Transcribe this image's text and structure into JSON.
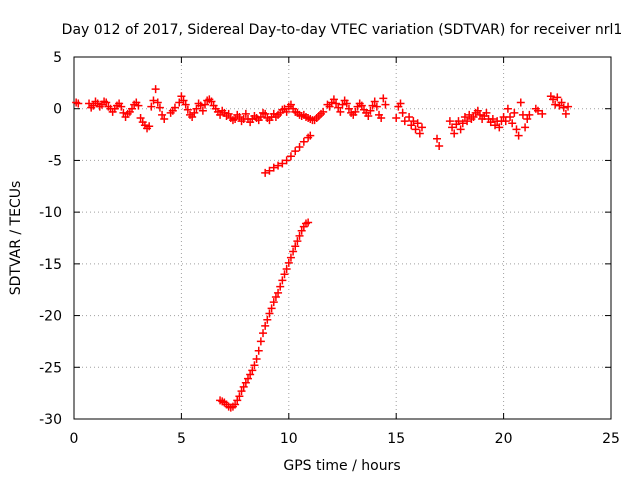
{
  "chart_data": {
    "type": "scatter",
    "title": "Day 012 of 2017, Sidereal Day-to-day VTEC variation (SDTVAR) for receiver nrl1",
    "xlabel": "GPS time / hours",
    "ylabel": "SDTVAR / TECUs",
    "xlim": [
      0,
      25
    ],
    "ylim": [
      -30,
      5
    ],
    "xticks": [
      0,
      5,
      10,
      15,
      20,
      25
    ],
    "yticks": [
      5,
      0,
      -5,
      -10,
      -15,
      -20,
      -25,
      -30
    ],
    "xtick_labels": [
      "0",
      "5",
      "10",
      "15",
      "20",
      "25"
    ],
    "ytick_labels": [
      "5",
      "0",
      "-5",
      "-10",
      "-15",
      "-20",
      "-25",
      "-30"
    ],
    "grid": true,
    "marker": "+",
    "color": "#ff0000",
    "series": [
      {
        "name": "SDTVAR",
        "points": [
          [
            0.1,
            0.6
          ],
          [
            0.2,
            0.5
          ],
          [
            0.7,
            0.5
          ],
          [
            0.8,
            0.1
          ],
          [
            0.9,
            0.3
          ],
          [
            1.0,
            0.7
          ],
          [
            1.1,
            0.5
          ],
          [
            1.2,
            0.2
          ],
          [
            1.3,
            0.4
          ],
          [
            1.4,
            0.7
          ],
          [
            1.5,
            0.6
          ],
          [
            1.6,
            0.2
          ],
          [
            1.7,
            0.0
          ],
          [
            1.8,
            -0.3
          ],
          [
            1.9,
            0.0
          ],
          [
            2.0,
            0.3
          ],
          [
            2.1,
            0.5
          ],
          [
            2.2,
            0.2
          ],
          [
            2.3,
            -0.4
          ],
          [
            2.4,
            -0.8
          ],
          [
            2.5,
            -0.5
          ],
          [
            2.6,
            -0.3
          ],
          [
            2.7,
            0.0
          ],
          [
            2.8,
            0.4
          ],
          [
            2.9,
            0.6
          ],
          [
            3.0,
            0.3
          ],
          [
            3.1,
            -0.9
          ],
          [
            3.2,
            -1.3
          ],
          [
            3.3,
            -1.6
          ],
          [
            3.4,
            -1.9
          ],
          [
            3.5,
            -1.7
          ],
          [
            3.6,
            0.2
          ],
          [
            3.7,
            0.8
          ],
          [
            3.8,
            1.9
          ],
          [
            3.9,
            0.6
          ],
          [
            4.0,
            0.1
          ],
          [
            4.1,
            -0.6
          ],
          [
            4.2,
            -1.0
          ],
          [
            4.5,
            -0.4
          ],
          [
            4.6,
            -0.2
          ],
          [
            4.7,
            0.1
          ],
          [
            4.9,
            0.6
          ],
          [
            5.0,
            1.2
          ],
          [
            5.1,
            0.8
          ],
          [
            5.2,
            0.4
          ],
          [
            5.3,
            -0.1
          ],
          [
            5.4,
            -0.6
          ],
          [
            5.5,
            -0.8
          ],
          [
            5.6,
            -0.4
          ],
          [
            5.7,
            0.0
          ],
          [
            5.8,
            0.5
          ],
          [
            5.9,
            0.3
          ],
          [
            6.0,
            -0.2
          ],
          [
            6.1,
            0.4
          ],
          [
            6.2,
            0.8
          ],
          [
            6.3,
            0.9
          ],
          [
            6.4,
            0.7
          ],
          [
            6.5,
            0.3
          ],
          [
            6.6,
            0.0
          ],
          [
            6.7,
            -0.3
          ],
          [
            6.8,
            -0.6
          ],
          [
            6.9,
            -0.2
          ],
          [
            7.0,
            -0.4
          ],
          [
            7.1,
            -0.7
          ],
          [
            7.2,
            -0.5
          ],
          [
            7.3,
            -0.9
          ],
          [
            7.4,
            -1.1
          ],
          [
            7.5,
            -1.0
          ],
          [
            7.6,
            -0.6
          ],
          [
            7.7,
            -0.8
          ],
          [
            7.8,
            -1.2
          ],
          [
            7.9,
            -1.0
          ],
          [
            8.0,
            -0.5
          ],
          [
            8.1,
            -1.0
          ],
          [
            8.2,
            -1.3
          ],
          [
            8.3,
            -1.0
          ],
          [
            8.4,
            -0.7
          ],
          [
            8.5,
            -0.9
          ],
          [
            8.6,
            -1.1
          ],
          [
            8.7,
            -0.8
          ],
          [
            8.8,
            -0.4
          ],
          [
            8.9,
            -0.5
          ],
          [
            9.0,
            -0.9
          ],
          [
            9.1,
            -1.1
          ],
          [
            9.2,
            -0.8
          ],
          [
            9.3,
            -0.5
          ],
          [
            9.4,
            -0.8
          ],
          [
            9.5,
            -0.6
          ],
          [
            9.6,
            -0.4
          ],
          [
            9.7,
            -0.1
          ],
          [
            9.8,
            0.0
          ],
          [
            9.9,
            -0.3
          ],
          [
            10.0,
            0.2
          ],
          [
            10.1,
            0.4
          ],
          [
            10.2,
            0.0
          ],
          [
            10.3,
            -0.3
          ],
          [
            10.4,
            -0.4
          ],
          [
            10.5,
            -0.6
          ],
          [
            10.6,
            -0.7
          ],
          [
            10.7,
            -0.6
          ],
          [
            10.8,
            -0.8
          ],
          [
            10.9,
            -0.9
          ],
          [
            11.0,
            -1.0
          ],
          [
            11.1,
            -1.1
          ],
          [
            11.2,
            -1.1
          ],
          [
            11.3,
            -0.9
          ],
          [
            11.4,
            -0.7
          ],
          [
            11.5,
            -0.5
          ],
          [
            11.6,
            -0.3
          ],
          [
            11.8,
            0.4
          ],
          [
            11.9,
            0.2
          ],
          [
            12.0,
            0.6
          ],
          [
            12.1,
            0.9
          ],
          [
            12.2,
            0.5
          ],
          [
            12.3,
            0.1
          ],
          [
            12.4,
            -0.3
          ],
          [
            12.5,
            0.4
          ],
          [
            12.6,
            0.8
          ],
          [
            12.7,
            0.5
          ],
          [
            12.8,
            0.0
          ],
          [
            12.9,
            -0.4
          ],
          [
            13.0,
            -0.6
          ],
          [
            13.1,
            -0.3
          ],
          [
            13.2,
            0.2
          ],
          [
            13.3,
            0.5
          ],
          [
            13.4,
            0.3
          ],
          [
            13.5,
            -0.1
          ],
          [
            13.6,
            -0.4
          ],
          [
            13.7,
            -0.7
          ],
          [
            13.8,
            -0.2
          ],
          [
            13.9,
            0.3
          ],
          [
            14.0,
            0.7
          ],
          [
            14.1,
            0.2
          ],
          [
            14.2,
            -0.6
          ],
          [
            14.3,
            -0.9
          ],
          [
            14.4,
            1.0
          ],
          [
            14.5,
            0.4
          ],
          [
            15.0,
            -0.9
          ],
          [
            15.1,
            0.2
          ],
          [
            15.2,
            0.5
          ],
          [
            15.3,
            -0.4
          ],
          [
            15.4,
            -1.2
          ],
          [
            15.6,
            -0.8
          ],
          [
            15.7,
            -1.6
          ],
          [
            15.8,
            -1.2
          ],
          [
            15.9,
            -2.0
          ],
          [
            16.0,
            -1.4
          ],
          [
            16.1,
            -2.4
          ],
          [
            16.2,
            -1.8
          ],
          [
            16.9,
            -2.9
          ],
          [
            17.0,
            -3.6
          ],
          [
            17.5,
            -1.2
          ],
          [
            17.6,
            -1.8
          ],
          [
            17.7,
            -2.4
          ],
          [
            17.8,
            -1.5
          ],
          [
            17.9,
            -1.2
          ],
          [
            18.0,
            -2.0
          ],
          [
            18.1,
            -1.4
          ],
          [
            18.2,
            -0.8
          ],
          [
            18.3,
            -1.2
          ],
          [
            18.4,
            -0.6
          ],
          [
            18.5,
            -1.0
          ],
          [
            18.6,
            -0.8
          ],
          [
            18.7,
            -0.4
          ],
          [
            18.8,
            -0.2
          ],
          [
            18.9,
            -0.6
          ],
          [
            19.0,
            -1.0
          ],
          [
            19.1,
            -0.7
          ],
          [
            19.2,
            -0.4
          ],
          [
            19.3,
            -1.0
          ],
          [
            19.4,
            -1.3
          ],
          [
            19.5,
            -1.0
          ],
          [
            19.6,
            -1.6
          ],
          [
            19.7,
            -1.2
          ],
          [
            19.8,
            -1.8
          ],
          [
            19.9,
            -1.2
          ],
          [
            20.0,
            -0.8
          ],
          [
            20.1,
            -1.2
          ],
          [
            20.2,
            0.0
          ],
          [
            20.3,
            -0.8
          ],
          [
            20.4,
            -1.4
          ],
          [
            20.5,
            -0.4
          ],
          [
            20.6,
            -2.0
          ],
          [
            20.7,
            -2.6
          ],
          [
            20.8,
            0.6
          ],
          [
            20.9,
            -0.6
          ],
          [
            21.0,
            -1.8
          ],
          [
            21.1,
            -1.0
          ],
          [
            21.2,
            -0.6
          ],
          [
            21.5,
            0.0
          ],
          [
            21.6,
            -0.2
          ],
          [
            21.8,
            -0.5
          ],
          [
            22.2,
            1.2
          ],
          [
            22.3,
            0.9
          ],
          [
            22.4,
            0.4
          ],
          [
            22.5,
            1.1
          ],
          [
            22.6,
            0.3
          ],
          [
            22.7,
            0.6
          ],
          [
            22.8,
            0.1
          ],
          [
            22.9,
            -0.5
          ],
          [
            23.0,
            0.2
          ],
          [
            8.9,
            -6.2
          ],
          [
            9.1,
            -6.0
          ],
          [
            9.3,
            -5.7
          ],
          [
            9.5,
            -5.5
          ],
          [
            9.7,
            -5.3
          ],
          [
            9.9,
            -5.0
          ],
          [
            10.1,
            -4.6
          ],
          [
            10.3,
            -4.1
          ],
          [
            10.5,
            -3.7
          ],
          [
            10.7,
            -3.2
          ],
          [
            10.9,
            -2.8
          ],
          [
            11.0,
            -2.6
          ],
          [
            6.8,
            -28.2
          ],
          [
            6.9,
            -28.3
          ],
          [
            7.0,
            -28.4
          ],
          [
            7.1,
            -28.6
          ],
          [
            7.2,
            -28.8
          ],
          [
            7.3,
            -28.9
          ],
          [
            7.4,
            -28.8
          ],
          [
            7.5,
            -28.6
          ],
          [
            7.6,
            -28.2
          ],
          [
            7.7,
            -27.8
          ],
          [
            7.8,
            -27.3
          ],
          [
            7.9,
            -26.9
          ],
          [
            8.0,
            -26.5
          ],
          [
            8.1,
            -26.1
          ],
          [
            8.2,
            -25.7
          ],
          [
            8.3,
            -25.3
          ],
          [
            8.4,
            -24.8
          ],
          [
            8.5,
            -24.2
          ],
          [
            8.6,
            -23.4
          ],
          [
            8.7,
            -22.5
          ],
          [
            8.8,
            -21.7
          ],
          [
            8.9,
            -21.0
          ],
          [
            9.0,
            -20.4
          ],
          [
            9.1,
            -19.8
          ],
          [
            9.2,
            -19.3
          ],
          [
            9.3,
            -18.7
          ],
          [
            9.4,
            -18.2
          ],
          [
            9.5,
            -17.8
          ],
          [
            9.6,
            -17.2
          ],
          [
            9.7,
            -16.6
          ],
          [
            9.8,
            -16.0
          ],
          [
            9.9,
            -15.5
          ],
          [
            10.0,
            -14.9
          ],
          [
            10.1,
            -14.4
          ],
          [
            10.2,
            -13.8
          ],
          [
            10.3,
            -13.3
          ],
          [
            10.4,
            -12.8
          ],
          [
            10.5,
            -12.3
          ],
          [
            10.6,
            -11.8
          ],
          [
            10.7,
            -11.4
          ],
          [
            10.8,
            -11.1
          ],
          [
            10.9,
            -11.0
          ]
        ]
      }
    ]
  }
}
